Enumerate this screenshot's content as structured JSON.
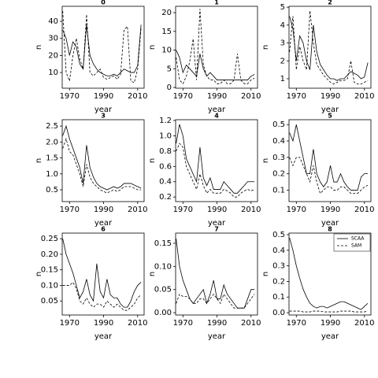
{
  "chart_data": [
    {
      "type": "line",
      "title": "0",
      "xlabel": "year",
      "ylabel": "n",
      "x": [
        1966,
        1968,
        1970,
        1972,
        1974,
        1976,
        1978,
        1980,
        1982,
        1984,
        1986,
        1988,
        1990,
        1992,
        1994,
        1996,
        1998,
        2000,
        2002,
        2004,
        2006,
        2008,
        2010,
        2012
      ],
      "series": [
        {
          "color": "#000000",
          "linestyle": "solid",
          "values": [
            35,
            30,
            20,
            28,
            25,
            15,
            12,
            38,
            20,
            15,
            12,
            10,
            9,
            8,
            8,
            9,
            8,
            10,
            12,
            11,
            10,
            10,
            14,
            38
          ]
        },
        {
          "color": "#000000",
          "linestyle": "dashed",
          "values": [
            46,
            10,
            5,
            20,
            30,
            18,
            12,
            44,
            10,
            8,
            10,
            12,
            7,
            6,
            7,
            8,
            6,
            9,
            35,
            37,
            5,
            4,
            12,
            36
          ]
        }
      ],
      "xlim": [
        1965.7,
        2013.8
      ],
      "ylim": [
        0.8,
        48.8
      ],
      "xticks": [
        1970,
        1990,
        2010
      ],
      "yticks": [
        10,
        20,
        30,
        40
      ]
    },
    {
      "type": "line",
      "title": "1",
      "xlabel": "year",
      "ylabel": "n",
      "x": [
        1966,
        1968,
        1970,
        1972,
        1974,
        1976,
        1978,
        1980,
        1982,
        1984,
        1986,
        1988,
        1990,
        1992,
        1994,
        1996,
        1998,
        2000,
        2002,
        2004,
        2006,
        2008,
        2010,
        2012
      ],
      "series": [
        {
          "color": "#000000",
          "linestyle": "solid",
          "values": [
            10,
            8,
            4,
            6,
            5,
            4,
            3,
            9,
            5,
            3,
            4,
            3,
            2,
            2,
            2,
            2,
            2,
            2,
            2,
            2,
            2,
            2,
            3,
            3.5
          ]
        },
        {
          "color": "#000000",
          "linestyle": "dashed",
          "values": [
            8,
            2,
            1,
            3,
            7,
            13,
            2,
            21,
            6,
            3,
            2,
            2,
            1,
            1,
            2,
            1,
            1,
            2,
            9,
            2,
            1,
            1,
            2,
            2.5
          ]
        }
      ],
      "xlim": [
        1965.7,
        2013.8
      ],
      "ylim": [
        -0.2,
        21.7
      ],
      "xticks": [
        1970,
        1990,
        2010
      ],
      "yticks": [
        0,
        5,
        10,
        15,
        20
      ]
    },
    {
      "type": "line",
      "title": "2",
      "xlabel": "year",
      "ylabel": "n",
      "x": [
        1966,
        1968,
        1970,
        1972,
        1974,
        1976,
        1978,
        1980,
        1982,
        1984,
        1986,
        1988,
        1990,
        1992,
        1994,
        1996,
        1998,
        2000,
        2002,
        2004,
        2006,
        2008,
        2010,
        2012
      ],
      "series": [
        {
          "color": "#000000",
          "linestyle": "solid",
          "values": [
            4.5,
            3.8,
            2,
            3.4,
            3,
            2,
            1.5,
            4,
            2.5,
            1.8,
            1.5,
            1.2,
            1,
            1,
            0.9,
            1,
            1,
            1.2,
            1.4,
            1.3,
            1.2,
            1,
            1.1,
            1.9
          ]
        },
        {
          "color": "#000000",
          "linestyle": "dashed",
          "values": [
            2.5,
            4.5,
            1.5,
            2.8,
            2,
            1.5,
            4.8,
            3,
            1.8,
            1.5,
            1.2,
            1,
            0.8,
            0.7,
            0.8,
            0.9,
            0.9,
            1,
            2,
            0.8,
            0.7,
            0.7,
            0.8,
            0.9
          ]
        }
      ],
      "xlim": [
        1965.7,
        2013.8
      ],
      "ylim": [
        0.47,
        5.05
      ],
      "xticks": [
        1970,
        1990,
        2010
      ],
      "yticks": [
        1,
        2,
        3,
        4,
        5
      ]
    },
    {
      "type": "line",
      "title": "3",
      "xlabel": "year",
      "ylabel": "n",
      "x": [
        1966,
        1968,
        1970,
        1972,
        1974,
        1976,
        1978,
        1980,
        1982,
        1984,
        1986,
        1988,
        1990,
        1992,
        1994,
        1996,
        1998,
        2000,
        2002,
        2004,
        2006,
        2008,
        2010,
        2012
      ],
      "series": [
        {
          "color": "#000000",
          "linestyle": "solid",
          "values": [
            2.2,
            2.5,
            2.1,
            1.8,
            1.5,
            1.2,
            0.7,
            1.9,
            1.2,
            0.9,
            0.7,
            0.6,
            0.55,
            0.5,
            0.55,
            0.6,
            0.55,
            0.6,
            0.7,
            0.7,
            0.7,
            0.65,
            0.6,
            0.55
          ]
        },
        {
          "color": "#000000",
          "linestyle": "dashed",
          "values": [
            1.8,
            2.1,
            1.7,
            1.6,
            1.3,
            1.0,
            0.6,
            1.3,
            0.9,
            0.7,
            0.6,
            0.5,
            0.45,
            0.4,
            0.45,
            0.5,
            0.45,
            0.5,
            0.6,
            0.6,
            0.6,
            0.55,
            0.5,
            0.5
          ]
        }
      ],
      "xlim": [
        1965.7,
        2013.8
      ],
      "ylim": [
        0.13,
        2.7
      ],
      "xticks": [
        1970,
        1990,
        2010
      ],
      "yticks": [
        0.5,
        {
          "value": 1,
          "label": "1.0"
        },
        1.5,
        {
          "value": 2,
          "label": "2.0"
        },
        2.5
      ]
    },
    {
      "type": "line",
      "title": "4",
      "xlabel": "year",
      "ylabel": "n",
      "x": [
        1966,
        1968,
        1970,
        1972,
        1974,
        1976,
        1978,
        1980,
        1982,
        1984,
        1986,
        1988,
        1990,
        1992,
        1994,
        1996,
        1998,
        2000,
        2002,
        2004,
        2006,
        2008,
        2010,
        2012
      ],
      "series": [
        {
          "color": "#000000",
          "linestyle": "solid",
          "values": [
            0.9,
            1.15,
            1.0,
            0.7,
            0.6,
            0.5,
            0.4,
            0.85,
            0.45,
            0.35,
            0.45,
            0.3,
            0.3,
            0.3,
            0.4,
            0.35,
            0.3,
            0.25,
            0.25,
            0.3,
            0.35,
            0.4,
            0.4,
            0.4
          ]
        },
        {
          "color": "#000000",
          "linestyle": "dashed",
          "values": [
            0.8,
            0.9,
            0.85,
            0.6,
            0.5,
            0.4,
            0.3,
            0.5,
            0.35,
            0.25,
            0.3,
            0.25,
            0.25,
            0.25,
            0.3,
            0.28,
            0.25,
            0.2,
            0.2,
            0.25,
            0.28,
            0.3,
            0.28,
            0.3
          ]
        }
      ],
      "xlim": [
        1965.7,
        2013.8
      ],
      "ylim": [
        0.14,
        1.21
      ],
      "xticks": [
        1970,
        1990,
        2010
      ],
      "yticks": [
        0.2,
        0.4,
        0.6,
        0.8,
        {
          "value": 1,
          "label": "1.0"
        },
        1.2
      ]
    },
    {
      "type": "line",
      "title": "5",
      "xlabel": "year",
      "ylabel": "n",
      "x": [
        1966,
        1968,
        1970,
        1972,
        1974,
        1976,
        1978,
        1980,
        1982,
        1984,
        1986,
        1988,
        1990,
        1992,
        1994,
        1996,
        1998,
        2000,
        2002,
        2004,
        2006,
        2008,
        2010,
        2012
      ],
      "series": [
        {
          "color": "#000000",
          "linestyle": "solid",
          "values": [
            0.45,
            0.4,
            0.5,
            0.4,
            0.3,
            0.2,
            0.2,
            0.35,
            0.2,
            0.15,
            0.12,
            0.15,
            0.25,
            0.15,
            0.15,
            0.2,
            0.15,
            0.12,
            0.1,
            0.1,
            0.1,
            0.18,
            0.2,
            0.2
          ]
        },
        {
          "color": "#000000",
          "linestyle": "dashed",
          "values": [
            0.3,
            0.25,
            0.3,
            0.3,
            0.25,
            0.2,
            0.15,
            0.25,
            0.15,
            0.08,
            0.1,
            0.12,
            0.12,
            0.1,
            0.1,
            0.12,
            0.12,
            0.1,
            0.08,
            0.08,
            0.08,
            0.1,
            0.12,
            0.13
          ]
        }
      ],
      "xlim": [
        1965.7,
        2013.8
      ],
      "ylim": [
        0.03,
        0.53
      ],
      "xticks": [
        1970,
        1990,
        2010
      ],
      "yticks": [
        0.1,
        0.2,
        0.3,
        0.4,
        0.5
      ]
    },
    {
      "type": "line",
      "title": "6",
      "xlabel": "year",
      "ylabel": "n",
      "x": [
        1966,
        1968,
        1970,
        1972,
        1974,
        1976,
        1978,
        1980,
        1982,
        1984,
        1986,
        1988,
        1990,
        1992,
        1994,
        1996,
        1998,
        2000,
        2002,
        2004,
        2006,
        2008,
        2010,
        2012
      ],
      "series": [
        {
          "color": "#000000",
          "linestyle": "solid",
          "values": [
            0.25,
            0.2,
            0.17,
            0.14,
            0.1,
            0.06,
            0.08,
            0.12,
            0.07,
            0.05,
            0.17,
            0.08,
            0.06,
            0.12,
            0.07,
            0.06,
            0.06,
            0.04,
            0.03,
            0.03,
            0.05,
            0.08,
            0.1,
            0.11
          ]
        },
        {
          "color": "#000000",
          "linestyle": "dashed",
          "values": [
            0.1,
            0.1,
            0.1,
            0.11,
            0.09,
            0.05,
            0.04,
            0.06,
            0.04,
            0.03,
            0.04,
            0.04,
            0.03,
            0.05,
            0.04,
            0.03,
            0.04,
            0.03,
            0.02,
            0.02,
            0.03,
            0.04,
            0.06,
            0.07
          ]
        }
      ],
      "xlim": [
        1965.7,
        2013.8
      ],
      "ylim": [
        0.005,
        0.268
      ],
      "xticks": [
        1970,
        1990,
        2010
      ],
      "yticks": [
        0.05,
        {
          "value": 0.1,
          "label": "0.10"
        },
        0.15,
        {
          "value": 0.2,
          "label": "0.20"
        },
        0.25
      ]
    },
    {
      "type": "line",
      "title": "7",
      "xlabel": "year",
      "ylabel": "n",
      "x": [
        1966,
        1968,
        1970,
        1972,
        1974,
        1976,
        1978,
        1980,
        1982,
        1984,
        1986,
        1988,
        1990,
        1992,
        1994,
        1996,
        1998,
        2000,
        2002,
        2004,
        2006,
        2008,
        2010,
        2012
      ],
      "series": [
        {
          "color": "#000000",
          "linestyle": "solid",
          "values": [
            0.16,
            0.1,
            0.07,
            0.05,
            0.03,
            0.02,
            0.03,
            0.04,
            0.05,
            0.02,
            0.04,
            0.07,
            0.03,
            0.03,
            0.06,
            0.04,
            0.03,
            0.02,
            0.01,
            0.01,
            0.01,
            0.03,
            0.05,
            0.05
          ]
        },
        {
          "color": "#000000",
          "linestyle": "dashed",
          "values": [
            0.02,
            0.04,
            0.035,
            0.035,
            0.03,
            0.02,
            0.02,
            0.03,
            0.03,
            0.02,
            0.03,
            0.04,
            0.03,
            0.02,
            0.04,
            0.03,
            0.02,
            0.01,
            0.01,
            0.01,
            0.01,
            0.02,
            0.03,
            0.04
          ]
        }
      ],
      "xlim": [
        1965.7,
        2013.8
      ],
      "ylim": [
        -0.005,
        0.172
      ],
      "xticks": [
        1970,
        1990,
        2010
      ],
      "yticks": [
        {
          "value": 0,
          "label": "0.00"
        },
        0.05,
        {
          "value": 0.1,
          "label": "0.10"
        },
        0.15
      ]
    },
    {
      "type": "line",
      "title": "8",
      "xlabel": "year",
      "ylabel": "n",
      "x": [
        1966,
        1968,
        1970,
        1972,
        1974,
        1976,
        1978,
        1980,
        1982,
        1984,
        1986,
        1988,
        1990,
        1992,
        1994,
        1996,
        1998,
        2000,
        2002,
        2004,
        2006,
        2008,
        2010,
        2012
      ],
      "series": [
        {
          "name": "SCAA",
          "color": "#000000",
          "linestyle": "solid",
          "values": [
            0.48,
            0.4,
            0.3,
            0.22,
            0.15,
            0.1,
            0.06,
            0.04,
            0.03,
            0.04,
            0.04,
            0.03,
            0.04,
            0.05,
            0.06,
            0.07,
            0.07,
            0.06,
            0.05,
            0.04,
            0.03,
            0.02,
            0.04,
            0.06
          ]
        },
        {
          "name": "SAM",
          "color": "#000000",
          "linestyle": "dashed",
          "values": [
            0.01,
            0.01,
            0.01,
            0.01,
            0.005,
            0.005,
            0.005,
            0.01,
            0.01,
            0.01,
            0.005,
            0.005,
            0.005,
            0.005,
            0.005,
            0.01,
            0.01,
            0.01,
            0.01,
            0.005,
            0.005,
            0.005,
            0.005,
            0.01
          ]
        }
      ],
      "xlim": [
        1965.7,
        2013.8
      ],
      "ylim": [
        -0.015,
        0.51
      ],
      "xticks": [
        1970,
        1990,
        2010
      ],
      "yticks": [
        {
          "value": 0,
          "label": "0.0"
        },
        0.1,
        0.2,
        0.3,
        0.4,
        0.5
      ],
      "legend": "upper right"
    }
  ]
}
